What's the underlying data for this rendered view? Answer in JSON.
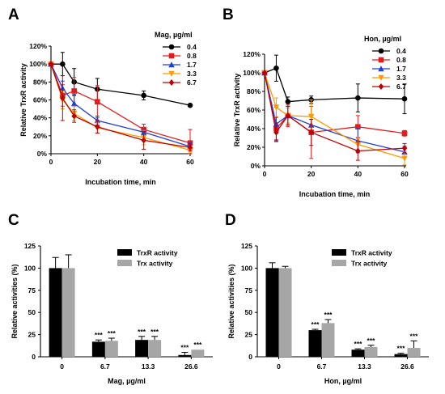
{
  "chart_data": [
    {
      "panel": "A",
      "type": "line",
      "title": "",
      "xlabel": "Incubation time, min",
      "ylabel": "Relative TrxR activity",
      "xlim": [
        0,
        60
      ],
      "ylim": [
        0,
        120
      ],
      "xticks": [
        "0",
        "20",
        "40",
        "60"
      ],
      "yticks": [
        "0%",
        "20%",
        "40%",
        "60%",
        "80%",
        "100%",
        "120%"
      ],
      "legend_title": "Mag, µg/ml",
      "legend_position": "top-right",
      "x": [
        0,
        5,
        10,
        20,
        40,
        60
      ],
      "series": [
        {
          "name": "0.4",
          "color": "#000000",
          "marker": "circle",
          "values": [
            100,
            100,
            80,
            72,
            65,
            54
          ],
          "errors": [
            0,
            13,
            15,
            12,
            5,
            0
          ]
        },
        {
          "name": "0.8",
          "color": "#e41a1c",
          "marker": "square",
          "values": [
            100,
            65,
            70,
            58,
            27,
            12
          ],
          "errors": [
            0,
            12,
            15,
            18,
            6,
            15
          ]
        },
        {
          "name": "1.7",
          "color": "#1f3fd8",
          "marker": "triangle-up",
          "values": [
            100,
            73,
            56,
            37,
            24,
            8
          ],
          "errors": [
            0,
            8,
            10,
            5,
            3,
            4
          ]
        },
        {
          "name": "3.3",
          "color": "#ff9900",
          "marker": "triangle-down",
          "values": [
            100,
            60,
            45,
            29,
            18,
            4
          ],
          "errors": [
            0,
            10,
            8,
            6,
            8,
            3
          ]
        },
        {
          "name": "6.7",
          "color": "#c00000",
          "marker": "diamond",
          "values": [
            100,
            62,
            42,
            30,
            15,
            7
          ],
          "errors": [
            0,
            25,
            7,
            7,
            10,
            4
          ]
        }
      ]
    },
    {
      "panel": "B",
      "type": "line",
      "title": "",
      "xlabel": "Incubation time, min",
      "ylabel": "Relative TrxR activity",
      "xlim": [
        0,
        60
      ],
      "ylim": [
        0,
        120
      ],
      "xticks": [
        "0",
        "20",
        "40",
        "60"
      ],
      "yticks": [
        "0%",
        "20%",
        "40%",
        "60%",
        "80%",
        "100%",
        "120%"
      ],
      "legend_title": "Hon, µg/ml",
      "legend_position": "top-right",
      "x": [
        0,
        5,
        10,
        20,
        40,
        60
      ],
      "series": [
        {
          "name": "0.4",
          "color": "#000000",
          "marker": "circle",
          "values": [
            100,
            105,
            69,
            71,
            73,
            72
          ],
          "errors": [
            0,
            14,
            5,
            4,
            15,
            16
          ]
        },
        {
          "name": "0.8",
          "color": "#e41a1c",
          "marker": "square",
          "values": [
            100,
            40,
            54,
            36,
            42,
            35
          ],
          "errors": [
            0,
            12,
            12,
            28,
            12,
            3
          ]
        },
        {
          "name": "1.7",
          "color": "#1f3fd8",
          "marker": "triangle-up",
          "values": [
            100,
            45,
            54,
            44,
            27,
            15
          ],
          "errors": [
            0,
            18,
            10,
            10,
            13,
            6
          ]
        },
        {
          "name": "3.3",
          "color": "#ff9900",
          "marker": "triangle-down",
          "values": [
            100,
            63,
            54,
            53,
            23,
            8
          ],
          "errors": [
            0,
            10,
            8,
            18,
            8,
            7
          ]
        },
        {
          "name": "6.7",
          "color": "#c00000",
          "marker": "diamond",
          "values": [
            100,
            36,
            54,
            36,
            16,
            19
          ],
          "errors": [
            0,
            10,
            10,
            14,
            10,
            5
          ]
        }
      ]
    },
    {
      "panel": "C",
      "type": "bar",
      "title": "",
      "xlabel": "Mag, µg/ml",
      "ylabel": "Relative activities (%)",
      "ylim": [
        0,
        125
      ],
      "yticks": [
        "0",
        "25",
        "50",
        "75",
        "100",
        "125"
      ],
      "categories": [
        "0",
        "6.7",
        "13.3",
        "26.6"
      ],
      "legend_position": "top-right",
      "series": [
        {
          "name": "TrxR activity",
          "color": "#000000",
          "values": [
            100,
            17,
            19,
            2
          ],
          "errors": [
            12,
            2,
            4,
            3
          ],
          "labels": [
            "",
            "***",
            "***",
            "***"
          ]
        },
        {
          "name": "Trx activity",
          "color": "#a6a6a6",
          "values": [
            100,
            18,
            19,
            8
          ],
          "errors": [
            15,
            3,
            4,
            0
          ],
          "labels": [
            "",
            "***",
            "***",
            "***"
          ]
        }
      ]
    },
    {
      "panel": "D",
      "type": "bar",
      "title": "",
      "xlabel": "Hon, µg/ml",
      "ylabel": "Relative activities (%)",
      "ylim": [
        0,
        125
      ],
      "yticks": [
        "0",
        "25",
        "50",
        "75",
        "100",
        "125"
      ],
      "categories": [
        "0",
        "6.7",
        "13.3",
        "26.6"
      ],
      "legend_position": "top-right",
      "series": [
        {
          "name": "TrxR activity",
          "color": "#000000",
          "values": [
            100,
            30,
            8,
            3
          ],
          "errors": [
            6,
            1,
            1,
            1
          ],
          "labels": [
            "",
            "***",
            "***",
            "***"
          ]
        },
        {
          "name": "Trx activity",
          "color": "#a6a6a6",
          "values": [
            100,
            38,
            11,
            10
          ],
          "errors": [
            2,
            4,
            2,
            8
          ],
          "labels": [
            "",
            "***",
            "***",
            "***"
          ]
        }
      ]
    }
  ]
}
